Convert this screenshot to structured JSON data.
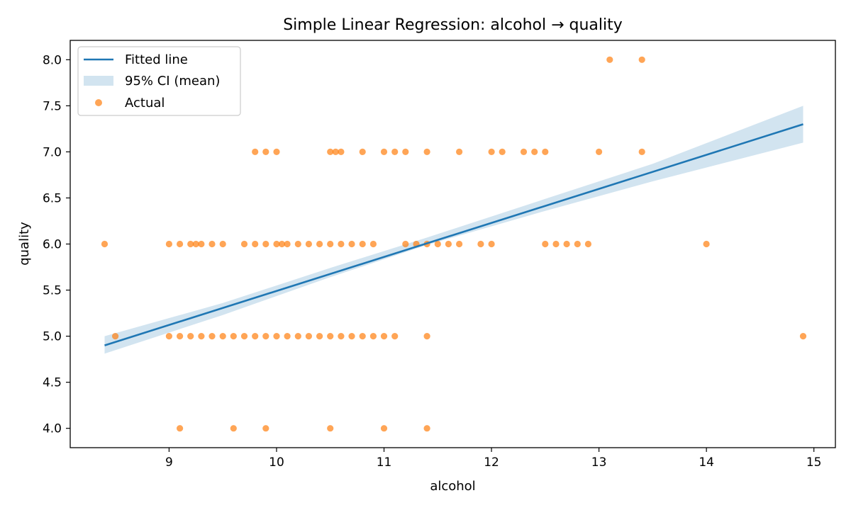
{
  "chart_data": {
    "type": "scatter",
    "title": "Simple Linear Regression: alcohol → quality",
    "xlabel": "alcohol",
    "ylabel": "quality",
    "xlim": [
      8.08,
      15.2
    ],
    "ylim": [
      3.79,
      8.21
    ],
    "xticks": [
      9,
      10,
      11,
      12,
      13,
      14,
      15
    ],
    "yticks": [
      4.0,
      4.5,
      5.0,
      5.5,
      6.0,
      6.5,
      7.0,
      7.5,
      8.0
    ],
    "ytick_labels": [
      "4.0",
      "4.5",
      "5.0",
      "5.5",
      "6.0",
      "6.5",
      "7.0",
      "7.5",
      "8.0"
    ],
    "grid": false,
    "legend_position": "top-left",
    "legend": [
      "Fitted line",
      "95% CI (mean)",
      "Actual"
    ],
    "colors": {
      "fitted_line": "#1f77b4",
      "ci_band": "#1f77b4",
      "actual": "#ff7f0e"
    },
    "fitted_line": {
      "x": [
        8.4,
        14.9
      ],
      "y": [
        4.9,
        7.3
      ]
    },
    "ci_band": {
      "x": [
        8.4,
        9.5,
        10.5,
        11.4,
        12.5,
        13.5,
        14.9
      ],
      "lower": [
        4.81,
        5.23,
        5.64,
        5.99,
        6.36,
        6.68,
        7.1
      ],
      "upper": [
        5.0,
        5.36,
        5.74,
        6.07,
        6.49,
        6.87,
        7.5
      ]
    },
    "actual": [
      [
        8.4,
        6
      ],
      [
        8.5,
        5
      ],
      [
        9.0,
        6
      ],
      [
        9.1,
        6
      ],
      [
        9.2,
        6
      ],
      [
        9.25,
        6
      ],
      [
        9.3,
        6
      ],
      [
        9.4,
        6
      ],
      [
        9.5,
        6
      ],
      [
        9.7,
        6
      ],
      [
        9.8,
        6
      ],
      [
        9.9,
        6
      ],
      [
        10.0,
        6
      ],
      [
        10.05,
        6
      ],
      [
        10.1,
        6
      ],
      [
        10.2,
        6
      ],
      [
        10.3,
        6
      ],
      [
        10.4,
        6
      ],
      [
        10.5,
        6
      ],
      [
        10.6,
        6
      ],
      [
        10.7,
        6
      ],
      [
        10.8,
        6
      ],
      [
        10.9,
        6
      ],
      [
        11.2,
        6
      ],
      [
        11.3,
        6
      ],
      [
        11.4,
        6
      ],
      [
        11.5,
        6
      ],
      [
        11.6,
        6
      ],
      [
        11.7,
        6
      ],
      [
        11.9,
        6
      ],
      [
        12.0,
        6
      ],
      [
        12.5,
        6
      ],
      [
        12.6,
        6
      ],
      [
        12.7,
        6
      ],
      [
        12.8,
        6
      ],
      [
        12.9,
        6
      ],
      [
        14.0,
        6
      ],
      [
        9.0,
        5
      ],
      [
        9.1,
        5
      ],
      [
        9.2,
        5
      ],
      [
        9.3,
        5
      ],
      [
        9.4,
        5
      ],
      [
        9.5,
        5
      ],
      [
        9.6,
        5
      ],
      [
        9.7,
        5
      ],
      [
        9.8,
        5
      ],
      [
        9.9,
        5
      ],
      [
        10.0,
        5
      ],
      [
        10.1,
        5
      ],
      [
        10.2,
        5
      ],
      [
        10.3,
        5
      ],
      [
        10.4,
        5
      ],
      [
        10.5,
        5
      ],
      [
        10.6,
        5
      ],
      [
        10.7,
        5
      ],
      [
        10.8,
        5
      ],
      [
        10.9,
        5
      ],
      [
        11.0,
        5
      ],
      [
        11.1,
        5
      ],
      [
        11.4,
        5
      ],
      [
        14.9,
        5
      ],
      [
        9.8,
        7
      ],
      [
        9.9,
        7
      ],
      [
        10.0,
        7
      ],
      [
        10.5,
        7
      ],
      [
        10.55,
        7
      ],
      [
        10.6,
        7
      ],
      [
        10.8,
        7
      ],
      [
        11.0,
        7
      ],
      [
        11.1,
        7
      ],
      [
        11.2,
        7
      ],
      [
        11.4,
        7
      ],
      [
        11.7,
        7
      ],
      [
        12.0,
        7
      ],
      [
        12.1,
        7
      ],
      [
        12.3,
        7
      ],
      [
        12.4,
        7
      ],
      [
        12.5,
        7
      ],
      [
        13.0,
        7
      ],
      [
        13.4,
        7
      ],
      [
        13.1,
        8
      ],
      [
        13.4,
        8
      ],
      [
        9.1,
        4
      ],
      [
        9.6,
        4
      ],
      [
        9.9,
        4
      ],
      [
        10.5,
        4
      ],
      [
        11.0,
        4
      ],
      [
        11.4,
        4
      ]
    ]
  }
}
